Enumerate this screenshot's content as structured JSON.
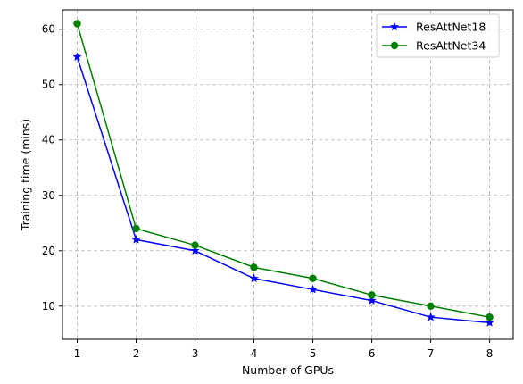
{
  "chart_data": {
    "type": "line",
    "xlabel": "Number of GPUs",
    "ylabel": "Training time (mins)",
    "x": [
      1,
      2,
      3,
      4,
      5,
      6,
      7,
      8
    ],
    "xlim": [
      0.75,
      8.4
    ],
    "ylim": [
      4.0,
      63.5
    ],
    "xticks": [
      1,
      2,
      3,
      4,
      5,
      6,
      7,
      8
    ],
    "yticks": [
      10,
      20,
      30,
      40,
      50,
      60
    ],
    "grid": true,
    "legend_position": "top-right",
    "series": [
      {
        "name": "ResAttNet18",
        "color": "#0000ff",
        "marker": "star",
        "values": [
          55,
          22,
          20,
          15,
          13,
          11,
          8,
          7
        ]
      },
      {
        "name": "ResAttNet34",
        "color": "#008000",
        "marker": "circle",
        "values": [
          61,
          24,
          21,
          17,
          15,
          12,
          10,
          8
        ]
      }
    ]
  }
}
